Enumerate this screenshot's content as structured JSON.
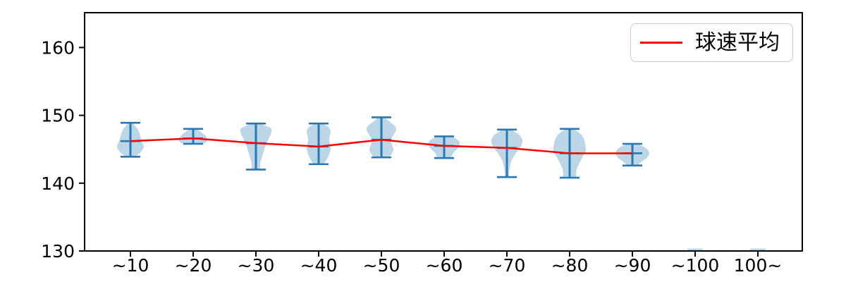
{
  "chart_data": {
    "type": "violin",
    "title": "",
    "xlabel": "",
    "ylabel": "",
    "unit_hint": "km/h",
    "categories": [
      "~10",
      "~20",
      "~30",
      "~40",
      "~50",
      "~60",
      "~70",
      "~80",
      "~90",
      "~100",
      "100~"
    ],
    "yticks": [
      130,
      140,
      150,
      160
    ],
    "ylim": [
      130,
      165.1
    ],
    "grid": false,
    "legend": {
      "label": "球速平均",
      "position": "upper right"
    },
    "mean_line": {
      "name": "球速平均",
      "categories": [
        "~10",
        "~20",
        "~30",
        "~40",
        "~50",
        "~60",
        "~70",
        "~80",
        "~90"
      ],
      "values": [
        146.2,
        146.6,
        145.9,
        145.4,
        146.4,
        145.5,
        145.2,
        144.4,
        144.4
      ]
    },
    "violins": [
      {
        "category": "~10",
        "min": 143.9,
        "max": 148.9,
        "mean": 146.2,
        "profile": [
          [
            148.9,
            3
          ],
          [
            148.5,
            6
          ],
          [
            148.0,
            10
          ],
          [
            147.3,
            13
          ],
          [
            146.6,
            15
          ],
          [
            146.0,
            17
          ],
          [
            145.4,
            19
          ],
          [
            144.9,
            17
          ],
          [
            144.4,
            13
          ],
          [
            144.05,
            8
          ],
          [
            143.9,
            5
          ]
        ]
      },
      {
        "category": "~20",
        "min": 145.8,
        "max": 148.0,
        "mean": 146.6,
        "profile": [
          [
            148.0,
            4
          ],
          [
            147.7,
            9
          ],
          [
            147.3,
            14
          ],
          [
            146.9,
            18
          ],
          [
            146.5,
            20
          ],
          [
            146.2,
            20
          ],
          [
            145.95,
            17
          ],
          [
            145.8,
            11
          ]
        ]
      },
      {
        "category": "~30",
        "min": 142.0,
        "max": 148.8,
        "mean": 145.9,
        "profile": [
          [
            148.8,
            5
          ],
          [
            148.5,
            13
          ],
          [
            148.1,
            21
          ],
          [
            147.7,
            22
          ],
          [
            147.2,
            21
          ],
          [
            146.6,
            18
          ],
          [
            146.0,
            16
          ],
          [
            145.4,
            13
          ],
          [
            144.7,
            11
          ],
          [
            144.0,
            9
          ],
          [
            143.3,
            7
          ],
          [
            142.7,
            6
          ],
          [
            142.2,
            6
          ],
          [
            142.0,
            5
          ]
        ]
      },
      {
        "category": "~40",
        "min": 142.8,
        "max": 148.8,
        "mean": 145.4,
        "profile": [
          [
            148.8,
            5
          ],
          [
            148.4,
            12
          ],
          [
            148.0,
            16
          ],
          [
            147.5,
            17
          ],
          [
            147.0,
            16
          ],
          [
            146.4,
            15
          ],
          [
            145.8,
            16
          ],
          [
            145.2,
            17
          ],
          [
            144.6,
            16
          ],
          [
            144.0,
            14
          ],
          [
            143.4,
            11
          ],
          [
            142.95,
            8
          ],
          [
            142.8,
            6
          ]
        ]
      },
      {
        "category": "~50",
        "min": 143.8,
        "max": 149.7,
        "mean": 146.4,
        "profile": [
          [
            149.7,
            4
          ],
          [
            149.3,
            9
          ],
          [
            148.8,
            15
          ],
          [
            148.3,
            20
          ],
          [
            147.9,
            21
          ],
          [
            147.4,
            19
          ],
          [
            146.9,
            16
          ],
          [
            146.4,
            13.5
          ],
          [
            145.9,
            14
          ],
          [
            145.4,
            16
          ],
          [
            144.9,
            17
          ],
          [
            144.4,
            15
          ],
          [
            144.0,
            12
          ],
          [
            143.8,
            9
          ]
        ]
      },
      {
        "category": "~60",
        "min": 143.7,
        "max": 146.9,
        "mean": 145.5,
        "profile": [
          [
            146.9,
            8
          ],
          [
            146.6,
            16
          ],
          [
            146.2,
            21
          ],
          [
            145.8,
            22
          ],
          [
            145.4,
            21
          ],
          [
            145.0,
            18
          ],
          [
            144.6,
            14
          ],
          [
            144.1,
            11
          ],
          [
            143.7,
            8
          ]
        ]
      },
      {
        "category": "~70",
        "min": 140.9,
        "max": 147.9,
        "mean": 145.2,
        "profile": [
          [
            147.9,
            6
          ],
          [
            147.6,
            11
          ],
          [
            147.2,
            17
          ],
          [
            146.8,
            20
          ],
          [
            146.4,
            22
          ],
          [
            146.0,
            22
          ],
          [
            145.5,
            20
          ],
          [
            145.0,
            17
          ],
          [
            144.5,
            13
          ],
          [
            144.0,
            10
          ],
          [
            143.4,
            7
          ],
          [
            142.8,
            5
          ],
          [
            142.2,
            4
          ],
          [
            141.5,
            3
          ],
          [
            140.9,
            2.5
          ]
        ]
      },
      {
        "category": "~80",
        "min": 140.8,
        "max": 148.0,
        "mean": 144.4,
        "profile": [
          [
            148.0,
            5
          ],
          [
            147.7,
            10
          ],
          [
            147.3,
            15
          ],
          [
            146.8,
            19
          ],
          [
            146.3,
            21
          ],
          [
            145.8,
            22
          ],
          [
            145.3,
            23
          ],
          [
            144.8,
            23
          ],
          [
            144.3,
            21
          ],
          [
            143.8,
            18
          ],
          [
            143.2,
            15
          ],
          [
            142.6,
            12
          ],
          [
            142.0,
            10
          ],
          [
            141.4,
            9
          ],
          [
            140.8,
            8
          ]
        ]
      },
      {
        "category": "~90",
        "min": 142.6,
        "max": 145.8,
        "mean": 144.4,
        "profile": [
          [
            145.8,
            7
          ],
          [
            145.5,
            14
          ],
          [
            145.2,
            19
          ],
          [
            144.9,
            22
          ],
          [
            144.5,
            24
          ],
          [
            144.1,
            23
          ],
          [
            143.7,
            20
          ],
          [
            143.3,
            15
          ],
          [
            142.9,
            10
          ],
          [
            142.6,
            7
          ]
        ]
      }
    ],
    "empty_group_markers": [
      "~100",
      "100~"
    ],
    "colors": {
      "violin_fill": "#bcd6e8",
      "violin_line": "#2878b4",
      "mean_line": "#ff0000",
      "axis": "#000000"
    }
  }
}
